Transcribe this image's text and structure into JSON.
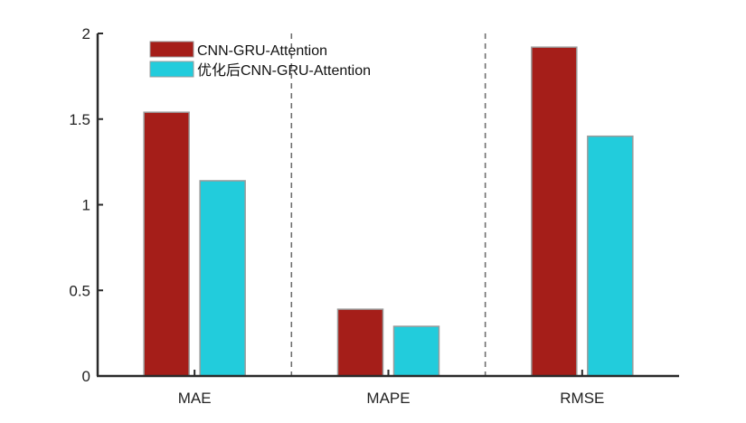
{
  "chart_data": {
    "type": "bar",
    "title": "",
    "xlabel": "",
    "ylabel": "",
    "categories": [
      "MAE",
      "MAPE",
      "RMSE"
    ],
    "ylim": [
      0,
      2
    ],
    "yticks": [
      0,
      0.5,
      1,
      1.5,
      2
    ],
    "ytick_labels": [
      "0",
      "0.5",
      "1",
      "1.5",
      "2"
    ],
    "grid": false,
    "separators": "dashed vertical lines between groups",
    "legend_position": "top-left",
    "series": [
      {
        "name": "CNN-GRU-Attention",
        "color": "#A51E19",
        "values": [
          1.54,
          0.39,
          1.92
        ]
      },
      {
        "name": "优化后CNN-GRU-Attention",
        "color": "#22CCDC",
        "values": [
          1.14,
          0.29,
          1.4
        ]
      }
    ]
  }
}
